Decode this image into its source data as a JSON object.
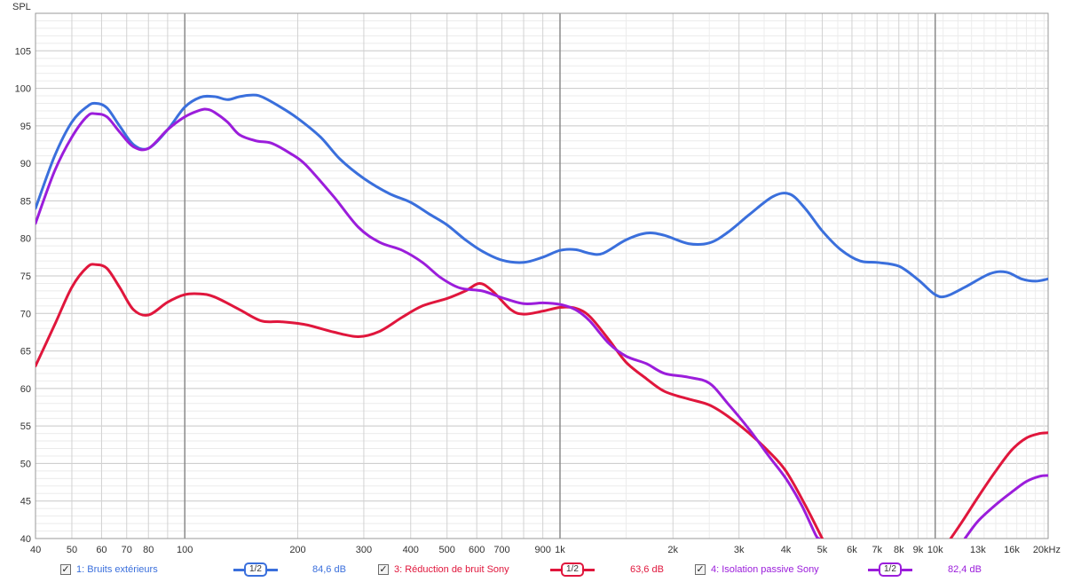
{
  "chart_data": {
    "type": "line",
    "ylabel": "SPL",
    "xscale": "log",
    "xlim": [
      40,
      20000
    ],
    "ylim": [
      40,
      110
    ],
    "y_ticks": [
      40,
      45,
      50,
      55,
      60,
      65,
      70,
      75,
      80,
      85,
      90,
      95,
      100,
      105
    ],
    "x_ticks": [
      {
        "v": 40,
        "label": "40"
      },
      {
        "v": 50,
        "label": "50"
      },
      {
        "v": 60,
        "label": "60"
      },
      {
        "v": 70,
        "label": "70"
      },
      {
        "v": 80,
        "label": "80"
      },
      {
        "v": 100,
        "label": "100"
      },
      {
        "v": 200,
        "label": "200"
      },
      {
        "v": 300,
        "label": "300"
      },
      {
        "v": 400,
        "label": "400"
      },
      {
        "v": 500,
        "label": "500"
      },
      {
        "v": 600,
        "label": "600"
      },
      {
        "v": 700,
        "label": "700"
      },
      {
        "v": 900,
        "label": "900"
      },
      {
        "v": 1000,
        "label": "1k"
      },
      {
        "v": 2000,
        "label": "2k"
      },
      {
        "v": 3000,
        "label": "3k"
      },
      {
        "v": 4000,
        "label": "4k"
      },
      {
        "v": 5000,
        "label": "5k"
      },
      {
        "v": 6000,
        "label": "6k"
      },
      {
        "v": 7000,
        "label": "7k"
      },
      {
        "v": 8000,
        "label": "8k"
      },
      {
        "v": 9000,
        "label": "9k"
      },
      {
        "v": 10000,
        "label": "10k"
      },
      {
        "v": 13000,
        "label": "13k"
      },
      {
        "v": 16000,
        "label": "16k"
      },
      {
        "v": 20000,
        "label": "20kHz"
      }
    ],
    "grid": true,
    "series": [
      {
        "name": "1: Bruits extérieurs",
        "color": "#3a6fdc",
        "points": [
          [
            40,
            84
          ],
          [
            45,
            91
          ],
          [
            50,
            95.5
          ],
          [
            55,
            97.6
          ],
          [
            58,
            98
          ],
          [
            62,
            97.4
          ],
          [
            67,
            95
          ],
          [
            73,
            92.5
          ],
          [
            80,
            92
          ],
          [
            90,
            94.5
          ],
          [
            100,
            97.5
          ],
          [
            110,
            98.8
          ],
          [
            120,
            98.9
          ],
          [
            130,
            98.5
          ],
          [
            140,
            98.9
          ],
          [
            150,
            99.1
          ],
          [
            160,
            98.9
          ],
          [
            180,
            97.5
          ],
          [
            200,
            96
          ],
          [
            230,
            93.5
          ],
          [
            260,
            90.5
          ],
          [
            300,
            88
          ],
          [
            350,
            86
          ],
          [
            400,
            84.8
          ],
          [
            450,
            83.2
          ],
          [
            500,
            81.8
          ],
          [
            560,
            79.8
          ],
          [
            620,
            78.3
          ],
          [
            700,
            77.1
          ],
          [
            800,
            76.8
          ],
          [
            900,
            77.5
          ],
          [
            1000,
            78.4
          ],
          [
            1100,
            78.5
          ],
          [
            1200,
            78
          ],
          [
            1300,
            78
          ],
          [
            1500,
            79.8
          ],
          [
            1700,
            80.7
          ],
          [
            1900,
            80.4
          ],
          [
            2200,
            79.3
          ],
          [
            2500,
            79.4
          ],
          [
            2800,
            80.8
          ],
          [
            3200,
            83.2
          ],
          [
            3700,
            85.6
          ],
          [
            4100,
            85.9
          ],
          [
            4500,
            84
          ],
          [
            5000,
            81
          ],
          [
            5600,
            78.5
          ],
          [
            6300,
            77
          ],
          [
            7000,
            76.8
          ],
          [
            8000,
            76.3
          ],
          [
            9000,
            74.5
          ],
          [
            10000,
            72.5
          ],
          [
            10700,
            72.3
          ],
          [
            12000,
            73.5
          ],
          [
            14000,
            75.3
          ],
          [
            15500,
            75.5
          ],
          [
            17000,
            74.6
          ],
          [
            18500,
            74.3
          ],
          [
            20000,
            74.6
          ]
        ]
      },
      {
        "name": "3: Réduction de bruit Sony",
        "color": "#e0163c",
        "points": [
          [
            40,
            63
          ],
          [
            45,
            68.5
          ],
          [
            50,
            73.5
          ],
          [
            55,
            76.2
          ],
          [
            58,
            76.5
          ],
          [
            62,
            76
          ],
          [
            67,
            73.5
          ],
          [
            73,
            70.5
          ],
          [
            80,
            69.8
          ],
          [
            90,
            71.5
          ],
          [
            100,
            72.5
          ],
          [
            110,
            72.6
          ],
          [
            120,
            72.2
          ],
          [
            140,
            70.5
          ],
          [
            160,
            69
          ],
          [
            180,
            68.9
          ],
          [
            210,
            68.5
          ],
          [
            250,
            67.5
          ],
          [
            290,
            66.9
          ],
          [
            330,
            67.6
          ],
          [
            380,
            69.5
          ],
          [
            430,
            71
          ],
          [
            500,
            72
          ],
          [
            560,
            73
          ],
          [
            610,
            74
          ],
          [
            660,
            73
          ],
          [
            740,
            70.5
          ],
          [
            800,
            69.9
          ],
          [
            900,
            70.3
          ],
          [
            1000,
            70.8
          ],
          [
            1100,
            70.7
          ],
          [
            1200,
            69.6
          ],
          [
            1350,
            66.5
          ],
          [
            1500,
            63.5
          ],
          [
            1700,
            61.3
          ],
          [
            1900,
            59.6
          ],
          [
            2200,
            58.6
          ],
          [
            2500,
            57.8
          ],
          [
            2800,
            56.3
          ],
          [
            3200,
            54
          ],
          [
            3600,
            51.6
          ],
          [
            4000,
            49
          ],
          [
            4500,
            44.5
          ],
          [
            5000,
            40
          ]
        ],
        "tail": [
          [
            11000,
            40
          ],
          [
            12000,
            42.8
          ],
          [
            13000,
            45.5
          ],
          [
            14500,
            49
          ],
          [
            16000,
            51.8
          ],
          [
            17500,
            53.4
          ],
          [
            19000,
            54
          ],
          [
            20000,
            54.1
          ]
        ]
      },
      {
        "name": "4: Isolation passive Sony",
        "color": "#9b1ddb",
        "points": [
          [
            40,
            82
          ],
          [
            45,
            89
          ],
          [
            50,
            93.5
          ],
          [
            55,
            96.3
          ],
          [
            58,
            96.6
          ],
          [
            62,
            96.2
          ],
          [
            67,
            94.2
          ],
          [
            73,
            92.2
          ],
          [
            80,
            92
          ],
          [
            90,
            94.5
          ],
          [
            100,
            96.2
          ],
          [
            110,
            97.1
          ],
          [
            115,
            97.2
          ],
          [
            120,
            96.8
          ],
          [
            130,
            95.5
          ],
          [
            140,
            93.8
          ],
          [
            155,
            93
          ],
          [
            170,
            92.7
          ],
          [
            190,
            91.4
          ],
          [
            210,
            89.8
          ],
          [
            250,
            85.5
          ],
          [
            290,
            81.5
          ],
          [
            330,
            79.5
          ],
          [
            380,
            78.4
          ],
          [
            430,
            76.8
          ],
          [
            480,
            74.8
          ],
          [
            540,
            73.4
          ],
          [
            620,
            73
          ],
          [
            700,
            72.1
          ],
          [
            800,
            71.3
          ],
          [
            900,
            71.4
          ],
          [
            1000,
            71.2
          ],
          [
            1100,
            70.5
          ],
          [
            1200,
            69
          ],
          [
            1350,
            66
          ],
          [
            1500,
            64.3
          ],
          [
            1700,
            63.3
          ],
          [
            1900,
            62
          ],
          [
            2200,
            61.5
          ],
          [
            2500,
            60.7
          ],
          [
            2800,
            58
          ],
          [
            3200,
            54.5
          ],
          [
            3600,
            51
          ],
          [
            4000,
            48
          ],
          [
            4400,
            44.5
          ],
          [
            4800,
            40.5
          ],
          [
            4900,
            40
          ]
        ],
        "tail": [
          [
            12000,
            40
          ],
          [
            13000,
            42.3
          ],
          [
            14500,
            44.5
          ],
          [
            16000,
            46.2
          ],
          [
            17500,
            47.6
          ],
          [
            19000,
            48.3
          ],
          [
            20000,
            48.4
          ]
        ]
      }
    ]
  },
  "legend": {
    "items": [
      {
        "label": "1: Bruits extérieurs",
        "smoothing": "1/2",
        "level": "84,6 dB",
        "color": "#3a6fdc"
      },
      {
        "label": "3: Réduction de bruit Sony",
        "smoothing": "1/2",
        "level": "63,6 dB",
        "color": "#e0163c"
      },
      {
        "label": "4: Isolation passive Sony",
        "smoothing": "1/2",
        "level": "82,4 dB",
        "color": "#9b1ddb"
      }
    ],
    "check": "✓"
  }
}
